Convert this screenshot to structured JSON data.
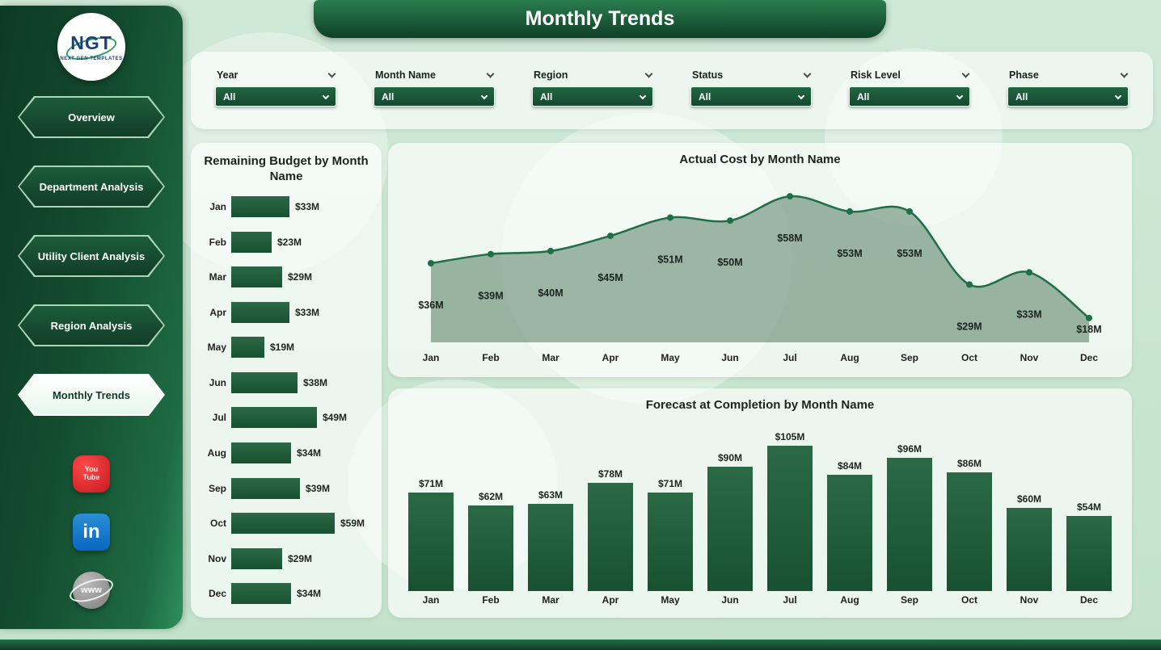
{
  "page": {
    "title": "Monthly Trends"
  },
  "sidebar": {
    "logo": {
      "text": "NGT",
      "subtext": "NEXT GEN TEMPLATES"
    },
    "items": [
      {
        "label": "Overview",
        "active": false
      },
      {
        "label": "Department Analysis",
        "active": false
      },
      {
        "label": "Utility Client Analysis",
        "active": false
      },
      {
        "label": "Region Analysis",
        "active": false
      },
      {
        "label": "Monthly Trends",
        "active": true
      }
    ],
    "social": [
      {
        "name": "youtube",
        "lines": [
          "You",
          "Tube"
        ]
      },
      {
        "name": "linkedin",
        "text": "in"
      },
      {
        "name": "website",
        "text": "www"
      }
    ]
  },
  "filters": [
    {
      "label": "Year",
      "value": "All"
    },
    {
      "label": "Month Name",
      "value": "All"
    },
    {
      "label": "Region",
      "value": "All"
    },
    {
      "label": "Status",
      "value": "All"
    },
    {
      "label": "Risk Level",
      "value": "All"
    },
    {
      "label": "Phase",
      "value": "All"
    }
  ],
  "colors": {
    "dark_green": "#14532f",
    "mid_green": "#1e6a42",
    "bar_green": "#1a5c37",
    "bg_green": "#c9e5cf",
    "panel_white": "#ffffff"
  },
  "chart_data": [
    {
      "type": "bar",
      "orientation": "horizontal",
      "title": "Remaining Budget by Month Name",
      "categories": [
        "Jan",
        "Feb",
        "Mar",
        "Apr",
        "May",
        "Jun",
        "Jul",
        "Aug",
        "Sep",
        "Oct",
        "Nov",
        "Dec"
      ],
      "values": [
        33,
        23,
        29,
        33,
        19,
        38,
        49,
        34,
        39,
        59,
        29,
        34
      ],
      "value_labels": [
        "$33M",
        "$23M",
        "$29M",
        "$33M",
        "$19M",
        "$38M",
        "$49M",
        "$34M",
        "$39M",
        "$59M",
        "$29M",
        "$34M"
      ],
      "xlim": [
        0,
        59
      ],
      "color": "#1a5c37"
    },
    {
      "type": "area",
      "title": "Actual Cost by Month Name",
      "categories": [
        "Jan",
        "Feb",
        "Mar",
        "Apr",
        "May",
        "Jun",
        "Jul",
        "Aug",
        "Sep",
        "Oct",
        "Nov",
        "Dec"
      ],
      "values": [
        36,
        39,
        40,
        45,
        51,
        50,
        58,
        53,
        53,
        29,
        33,
        18
      ],
      "value_labels": [
        "$36M",
        "$39M",
        "$40M",
        "$45M",
        "$51M",
        "$50M",
        "$58M",
        "$53M",
        "$53M",
        "$29M",
        "$33M",
        "$18M"
      ],
      "ylim": [
        10,
        62
      ],
      "markers": true,
      "line_color": "#1e6f46",
      "fill_color": "rgba(25,77,42,0.4)"
    },
    {
      "type": "bar",
      "orientation": "vertical",
      "title": "Forecast at Completion by Month Name",
      "categories": [
        "Jan",
        "Feb",
        "Mar",
        "Apr",
        "May",
        "Jun",
        "Jul",
        "Aug",
        "Sep",
        "Oct",
        "Nov",
        "Dec"
      ],
      "values": [
        71,
        62,
        63,
        78,
        71,
        90,
        105,
        84,
        96,
        86,
        60,
        54
      ],
      "value_labels": [
        "$71M",
        "$62M",
        "$63M",
        "$78M",
        "$71M",
        "$90M",
        "$105M",
        "$84M",
        "$96M",
        "$86M",
        "$60M",
        "$54M"
      ],
      "ylim": [
        0,
        105
      ],
      "color": "#1a5c37"
    }
  ]
}
